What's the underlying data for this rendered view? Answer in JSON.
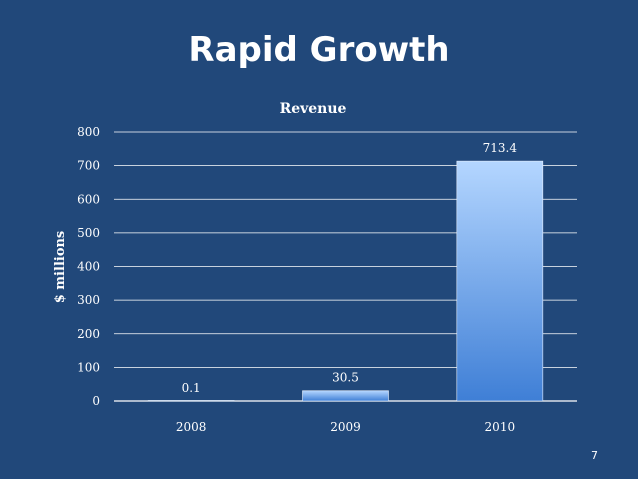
{
  "slide": {
    "title": "Rapid Growth",
    "page_number": "7"
  },
  "colors": {
    "background": "#21487a",
    "text": "#ffffff",
    "gridline": "#ffffff",
    "bar_top": "#b4d6ff",
    "bar_bottom": "#3f7fd6"
  },
  "chart_data": {
    "type": "bar",
    "title": "Revenue",
    "xlabel": "",
    "ylabel": "$ millions",
    "categories": [
      "2008",
      "2009",
      "2010"
    ],
    "values": [
      0.1,
      30.5,
      713.4
    ],
    "data_labels": [
      "0.1",
      "30.5",
      "713.4"
    ],
    "ylim": [
      0,
      800
    ],
    "yticks": [
      0,
      100,
      200,
      300,
      400,
      500,
      600,
      700,
      800
    ],
    "grid": true,
    "legend": "none"
  }
}
